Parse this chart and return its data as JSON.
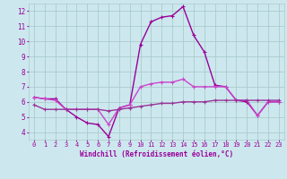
{
  "x": [
    0,
    1,
    2,
    3,
    4,
    5,
    6,
    7,
    8,
    9,
    10,
    11,
    12,
    13,
    14,
    15,
    16,
    17,
    18,
    19,
    20,
    21,
    22,
    23
  ],
  "line1": [
    6.3,
    6.2,
    6.2,
    5.5,
    5.0,
    4.6,
    4.5,
    3.7,
    5.6,
    5.8,
    9.8,
    11.3,
    11.6,
    11.7,
    12.3,
    10.4,
    9.3,
    7.1,
    7.0,
    6.1,
    6.0,
    5.1,
    6.0,
    6.0
  ],
  "line2": [
    6.3,
    6.2,
    6.1,
    5.5,
    5.5,
    5.5,
    5.5,
    4.5,
    5.6,
    5.8,
    7.0,
    7.2,
    7.3,
    7.3,
    7.5,
    7.0,
    7.0,
    7.0,
    7.0,
    6.1,
    6.1,
    5.1,
    6.0,
    6.0
  ],
  "line3": [
    5.8,
    5.5,
    5.5,
    5.5,
    5.5,
    5.5,
    5.5,
    5.4,
    5.5,
    5.6,
    5.7,
    5.8,
    5.9,
    5.9,
    6.0,
    6.0,
    6.0,
    6.1,
    6.1,
    6.1,
    6.1,
    6.1,
    6.1,
    6.1
  ],
  "bg_color": "#cce8ee",
  "grid_color": "#aacccc",
  "line1_color": "#990099",
  "line2_color": "#cc44cc",
  "line3_color": "#993399",
  "xlim": [
    -0.5,
    23.5
  ],
  "ylim": [
    3.5,
    12.5
  ],
  "yticks": [
    4,
    5,
    6,
    7,
    8,
    9,
    10,
    11,
    12
  ],
  "xticks": [
    0,
    1,
    2,
    3,
    4,
    5,
    6,
    7,
    8,
    9,
    10,
    11,
    12,
    13,
    14,
    15,
    16,
    17,
    18,
    19,
    20,
    21,
    22,
    23
  ],
  "xlabel": "Windchill (Refroidissement éolien,°C)",
  "font_color": "#990099",
  "linewidth": 1.0
}
